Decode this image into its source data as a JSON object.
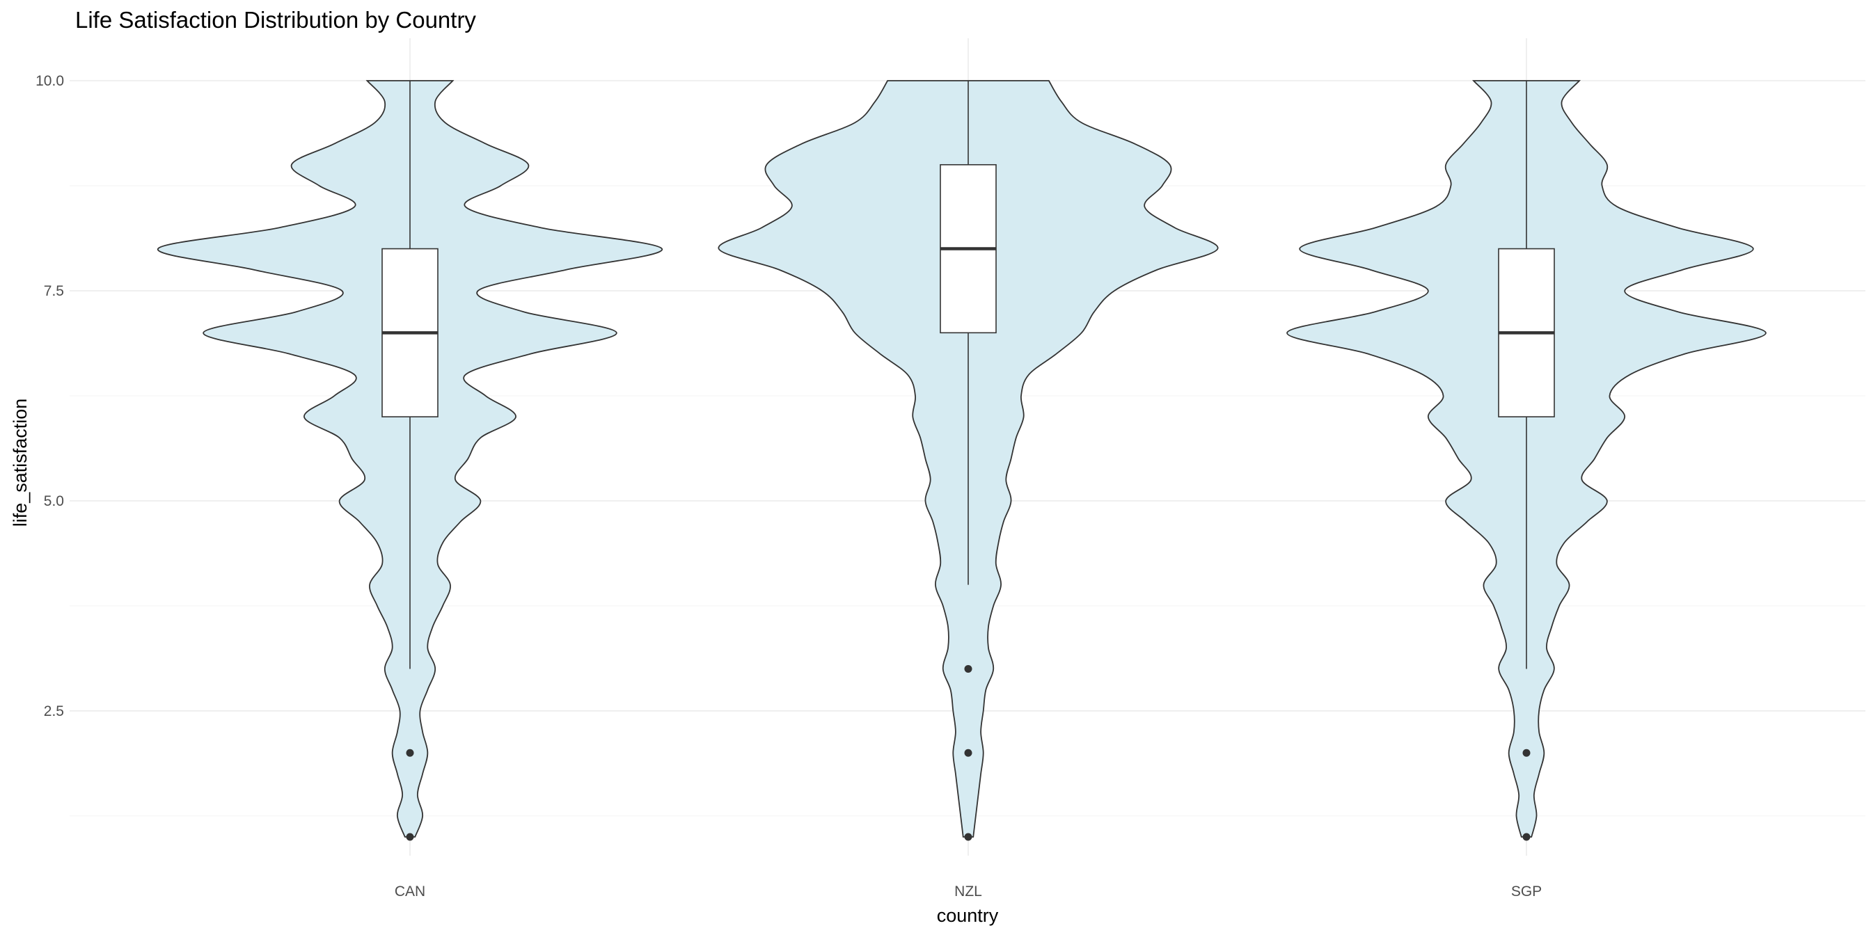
{
  "chart_data": {
    "type": "violin",
    "title": "Life Satisfaction Distribution by Country",
    "xlabel": "country",
    "ylabel": "life_satisfaction",
    "ylim": [
      0.6,
      10.3
    ],
    "yticks": [
      2.5,
      5.0,
      7.5,
      10.0
    ],
    "ytick_labels": [
      "2.5",
      "5.0",
      "7.5",
      "10.0"
    ],
    "categories": [
      "CAN",
      "NZL",
      "SGP"
    ],
    "grid": true,
    "fill_color": "#d6ebf2",
    "outline_color": "#333333",
    "groups": [
      {
        "category": "CAN",
        "y_range": [
          1,
          10
        ],
        "box": {
          "q1": 6,
          "median": 7,
          "q3": 8,
          "whisker_low": 3,
          "whisker_high": 10
        },
        "outliers": [
          2,
          1
        ],
        "density": [
          [
            1,
            0.02
          ],
          [
            1.25,
            0.05
          ],
          [
            1.5,
            0.03
          ],
          [
            1.75,
            0.05
          ],
          [
            2,
            0.07
          ],
          [
            2.25,
            0.05
          ],
          [
            2.5,
            0.04
          ],
          [
            2.75,
            0.07
          ],
          [
            3,
            0.1
          ],
          [
            3.25,
            0.07
          ],
          [
            3.5,
            0.09
          ],
          [
            3.75,
            0.13
          ],
          [
            4,
            0.16
          ],
          [
            4.25,
            0.11
          ],
          [
            4.5,
            0.13
          ],
          [
            4.75,
            0.2
          ],
          [
            5,
            0.28
          ],
          [
            5.25,
            0.18
          ],
          [
            5.5,
            0.23
          ],
          [
            5.75,
            0.28
          ],
          [
            6,
            0.42
          ],
          [
            6.25,
            0.3
          ],
          [
            6.5,
            0.22
          ],
          [
            6.75,
            0.48
          ],
          [
            7,
            0.82
          ],
          [
            7.25,
            0.45
          ],
          [
            7.5,
            0.27
          ],
          [
            7.75,
            0.62
          ],
          [
            8,
            1.0
          ],
          [
            8.25,
            0.52
          ],
          [
            8.5,
            0.22
          ],
          [
            8.75,
            0.36
          ],
          [
            9,
            0.47
          ],
          [
            9.25,
            0.3
          ],
          [
            9.5,
            0.14
          ],
          [
            9.75,
            0.1
          ],
          [
            10,
            0.17
          ]
        ]
      },
      {
        "category": "NZL",
        "y_range": [
          1,
          10
        ],
        "box": {
          "q1": 7,
          "median": 8,
          "q3": 9,
          "whisker_low": 4,
          "whisker_high": 10
        },
        "outliers": [
          3,
          2,
          1
        ],
        "density": [
          [
            1,
            0.02
          ],
          [
            1.25,
            0.03
          ],
          [
            1.5,
            0.04
          ],
          [
            1.75,
            0.05
          ],
          [
            2,
            0.06
          ],
          [
            2.25,
            0.05
          ],
          [
            2.5,
            0.06
          ],
          [
            2.75,
            0.07
          ],
          [
            3,
            0.1
          ],
          [
            3.25,
            0.08
          ],
          [
            3.5,
            0.08
          ],
          [
            3.75,
            0.1
          ],
          [
            4,
            0.13
          ],
          [
            4.25,
            0.11
          ],
          [
            4.5,
            0.12
          ],
          [
            4.75,
            0.14
          ],
          [
            5,
            0.17
          ],
          [
            5.25,
            0.15
          ],
          [
            5.5,
            0.17
          ],
          [
            5.75,
            0.19
          ],
          [
            6,
            0.22
          ],
          [
            6.25,
            0.21
          ],
          [
            6.5,
            0.24
          ],
          [
            6.75,
            0.35
          ],
          [
            7,
            0.45
          ],
          [
            7.25,
            0.5
          ],
          [
            7.5,
            0.58
          ],
          [
            7.75,
            0.75
          ],
          [
            8,
            0.99
          ],
          [
            8.25,
            0.82
          ],
          [
            8.5,
            0.7
          ],
          [
            8.75,
            0.77
          ],
          [
            9,
            0.8
          ],
          [
            9.25,
            0.66
          ],
          [
            9.5,
            0.45
          ],
          [
            9.75,
            0.37
          ],
          [
            10,
            0.32
          ]
        ]
      },
      {
        "category": "SGP",
        "y_range": [
          1,
          10
        ],
        "box": {
          "q1": 6,
          "median": 7,
          "q3": 8,
          "whisker_low": 3,
          "whisker_high": 10
        },
        "outliers": [
          2,
          1
        ],
        "density": [
          [
            1,
            0.02
          ],
          [
            1.25,
            0.04
          ],
          [
            1.5,
            0.03
          ],
          [
            1.75,
            0.05
          ],
          [
            2,
            0.07
          ],
          [
            2.25,
            0.05
          ],
          [
            2.5,
            0.05
          ],
          [
            2.75,
            0.07
          ],
          [
            3,
            0.11
          ],
          [
            3.25,
            0.08
          ],
          [
            3.5,
            0.1
          ],
          [
            3.75,
            0.13
          ],
          [
            4,
            0.17
          ],
          [
            4.25,
            0.12
          ],
          [
            4.5,
            0.15
          ],
          [
            4.75,
            0.24
          ],
          [
            5,
            0.32
          ],
          [
            5.25,
            0.22
          ],
          [
            5.5,
            0.27
          ],
          [
            5.75,
            0.32
          ],
          [
            6,
            0.39
          ],
          [
            6.25,
            0.33
          ],
          [
            6.5,
            0.41
          ],
          [
            6.75,
            0.63
          ],
          [
            7,
            0.95
          ],
          [
            7.25,
            0.6
          ],
          [
            7.5,
            0.39
          ],
          [
            7.75,
            0.62
          ],
          [
            8,
            0.9
          ],
          [
            8.25,
            0.6
          ],
          [
            8.5,
            0.36
          ],
          [
            8.75,
            0.3
          ],
          [
            9,
            0.32
          ],
          [
            9.25,
            0.25
          ],
          [
            9.5,
            0.18
          ],
          [
            9.75,
            0.14
          ],
          [
            10,
            0.21
          ]
        ]
      }
    ]
  }
}
